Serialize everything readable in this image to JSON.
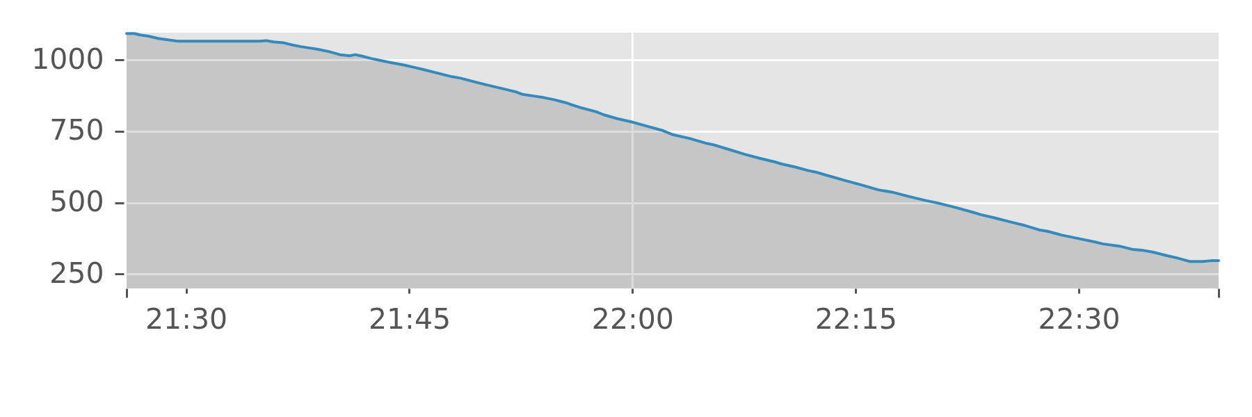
{
  "chart_data": {
    "type": "area",
    "x": [
      21.4333,
      21.4422,
      21.4483,
      21.4577,
      21.4685,
      21.4888,
      21.492,
      21.582,
      21.5898,
      21.5977,
      21.6085,
      21.6193,
      21.6287,
      21.6412,
      21.6458,
      21.6598,
      21.6722,
      21.6832,
      21.6893,
      21.6955,
      21.7095,
      21.725,
      21.7437,
      21.7562,
      21.7655,
      21.7977,
      21.807,
      21.8318,
      21.8505,
      21.8692,
      21.877,
      21.8878,
      21.9003,
      21.9128,
      21.9252,
      21.9315,
      21.9438,
      21.9595,
      21.9675,
      21.983,
      21.9985,
      22.0172,
      22.0343,
      22.0452,
      22.0638,
      22.0825,
      22.0903,
      22.1073,
      22.126,
      22.1417,
      22.1602,
      22.1665,
      22.182,
      22.1975,
      22.2068,
      22.2162,
      22.2378,
      22.2565,
      22.2752,
      22.2907,
      22.3093,
      22.328,
      22.3403,
      22.3622,
      22.3808,
      22.3902,
      22.4057,
      22.4243,
      22.4398,
      22.4553,
      22.4647,
      22.4802,
      22.502,
      22.5175,
      22.5268,
      22.5455,
      22.561,
      22.5703,
      22.5828,
      22.5983,
      22.6107,
      22.6247,
      22.6387,
      22.648,
      22.6565
    ],
    "series": [
      {
        "color": "#348abd",
        "values": [
          1092,
          1092,
          1087,
          1083,
          1075,
          1066,
          1065,
          1065,
          1067,
          1063,
          1060,
          1052,
          1046,
          1040,
          1038,
          1029,
          1018,
          1014,
          1018,
          1014,
          1003,
          993,
          982,
          973,
          966,
          941,
          936,
          916,
          902,
          888,
          879,
          874,
          868,
          860,
          850,
          843,
          831,
          818,
          808,
          794,
          783,
          767,
          752,
          738,
          725,
          708,
          703,
          687,
          669,
          656,
          642,
          636,
          625,
          612,
          606,
          597,
          578,
          562,
          545,
          537,
          522,
          508,
          500,
          483,
          467,
          458,
          447,
          432,
          420,
          405,
          400,
          387,
          373,
          363,
          356,
          348,
          336,
          334,
          327,
          315,
          306,
          294,
          294,
          297,
          297
        ]
      }
    ],
    "xlim": [
      21.4333,
      22.6565
    ],
    "xticks": [
      {
        "value": 21.4333,
        "label": null
      },
      {
        "value": 21.5,
        "label": "21:30"
      },
      {
        "value": 21.75,
        "label": "21:45"
      },
      {
        "value": 22.0,
        "label": "22:00"
      },
      {
        "value": 22.25,
        "label": "22:15"
      },
      {
        "value": 22.5,
        "label": "22:30"
      },
      {
        "value": 22.6565,
        "label": null
      }
    ],
    "ylim": [
      200,
      1095
    ],
    "yticks": [
      250,
      500,
      750,
      1000
    ],
    "grid": "y",
    "ref_lines": [
      {
        "axis": "x",
        "value": 22.0,
        "color": "#ffffff"
      }
    ]
  }
}
